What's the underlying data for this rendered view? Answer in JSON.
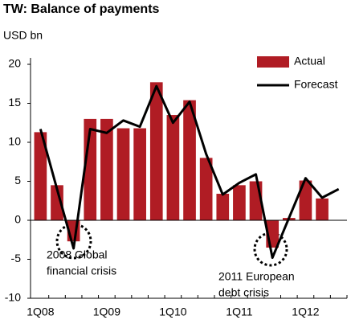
{
  "chart_data": {
    "type": "bar_line",
    "title": "TW: Balance of payments",
    "y_axis_label": "USD bn",
    "categories": [
      "1Q08",
      null,
      null,
      null,
      "1Q09",
      null,
      null,
      null,
      "1Q10",
      null,
      null,
      null,
      "1Q11",
      null,
      null,
      null,
      "1Q12",
      null,
      null
    ],
    "series": [
      {
        "name": "Actual",
        "color": "#b01c24",
        "kind": "bar",
        "values": [
          11.3,
          4.5,
          -2.7,
          13.0,
          13.0,
          11.8,
          11.8,
          17.7,
          13.5,
          15.4,
          8.0,
          3.4,
          4.5,
          5.0,
          -3.5,
          0.3,
          5.1,
          2.8,
          null
        ]
      },
      {
        "name": "Forecast",
        "color": "#000000",
        "kind": "line",
        "values": [
          11.7,
          4.0,
          -3.6,
          11.7,
          11.2,
          12.8,
          12.0,
          17.2,
          12.5,
          15.2,
          8.5,
          3.3,
          4.8,
          5.9,
          -4.8,
          0.3,
          5.4,
          2.9,
          4.0
        ]
      }
    ],
    "ylim": [
      -10,
      20
    ],
    "yticks": [
      -10,
      -5,
      0,
      5,
      10,
      15,
      20
    ],
    "legend": "upper right",
    "annotations": [
      {
        "lines": [
          "2008 Global",
          "financial crisis"
        ]
      },
      {
        "lines": [
          "2011 European",
          "debt crisis"
        ]
      }
    ]
  }
}
